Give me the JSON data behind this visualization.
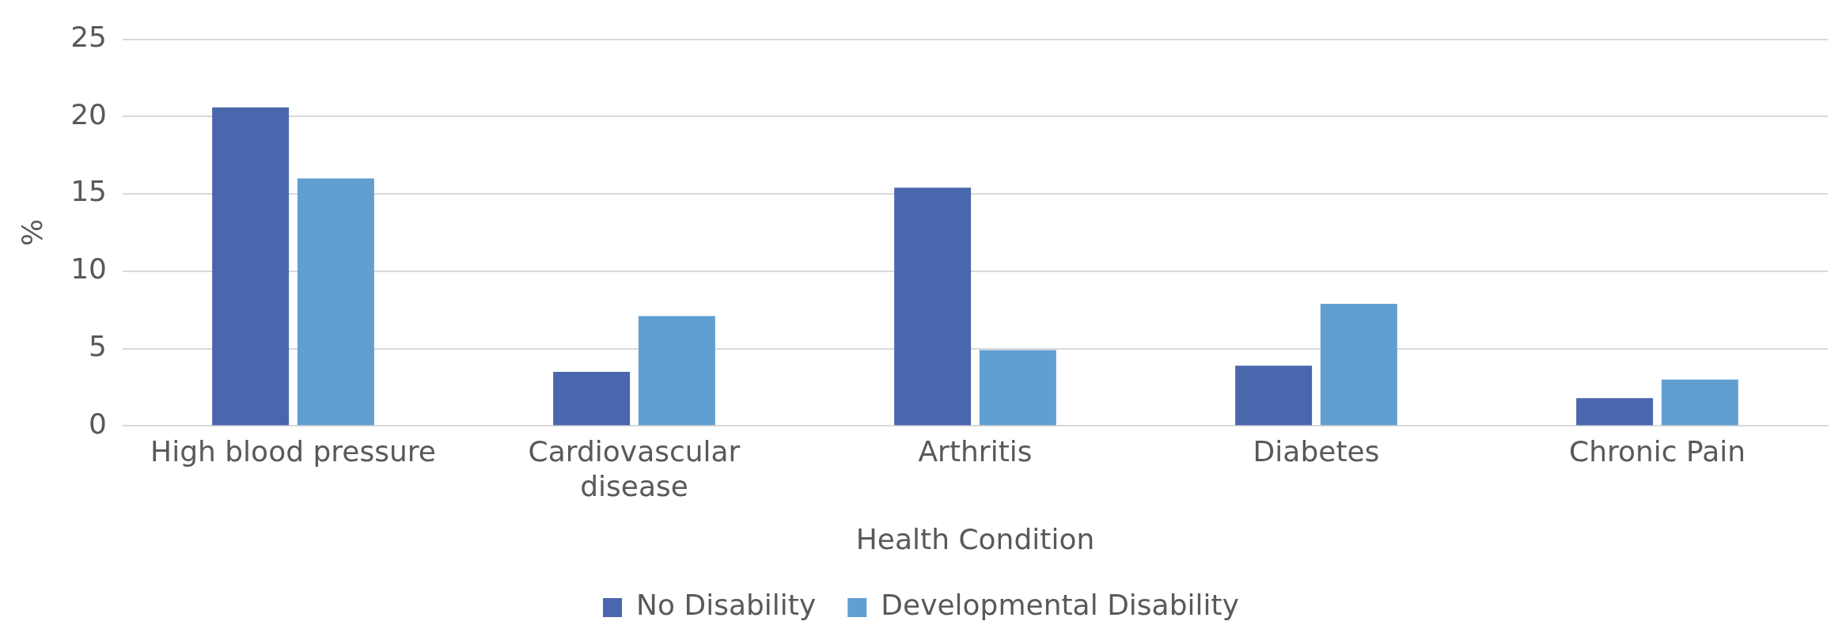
{
  "chart_data": {
    "type": "bar",
    "xlabel": "Health Condition",
    "ylabel": "%",
    "categories": [
      "High blood pressure",
      "Cardiovascular disease",
      "Arthritis",
      "Diabetes",
      "Chronic Pain"
    ],
    "series": [
      {
        "name": "No Disability",
        "color": "#4a66ac",
        "values": [
          20.6,
          3.5,
          15.4,
          3.9,
          1.8
        ]
      },
      {
        "name": "Developmental Disability",
        "color": "#629fd1",
        "values": [
          16.0,
          7.1,
          4.9,
          7.9,
          3.0
        ]
      }
    ],
    "ylim": [
      0,
      25
    ],
    "yticks": [
      0,
      5,
      10,
      15,
      20,
      25
    ],
    "grid": "y",
    "legend": "bottom"
  }
}
